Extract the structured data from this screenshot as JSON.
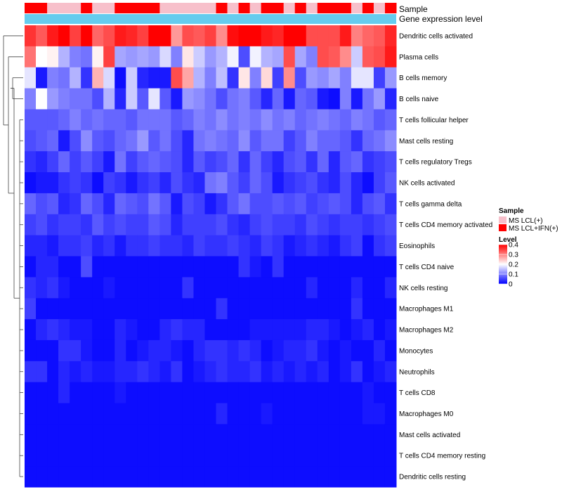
{
  "chart_data": {
    "type": "heatmap",
    "annotations": {
      "sample_label": "Sample",
      "expression_label": "Gene expression level",
      "sample_groups": [
        "MS LCL(+)",
        "MS LCL+IFN(+)"
      ],
      "sample_colors": [
        "#f7c0cb",
        "#ff0000"
      ],
      "sample_assignment": [
        1,
        1,
        0,
        0,
        0,
        1,
        0,
        0,
        1,
        1,
        1,
        1,
        0,
        0,
        0,
        0,
        0,
        1,
        0,
        1,
        0,
        1,
        1,
        0,
        1,
        0,
        1,
        1,
        1,
        0,
        1,
        0,
        1
      ],
      "expression_color": "#66ccee"
    },
    "legend": {
      "sample_title": "Sample",
      "level_title": "Level",
      "level_ticks": [
        "0.4",
        "0.3",
        "0.2",
        "0.1",
        "0"
      ],
      "level_range": [
        0,
        0.4
      ],
      "gradient": [
        "#0000ff",
        "#ffffff",
        "#ff0000"
      ]
    },
    "rows": [
      "Dendritic cells activated",
      "Plasma cells",
      "B cells memory",
      "B cells naive",
      "T cells follicular helper",
      "Mast cells resting",
      "T cells regulatory  Tregs",
      "NK cells activated",
      "T cells gamma delta",
      "T cells CD4 memory activated",
      "Eosinophils",
      "T cells CD4 naive",
      "NK cells resting",
      "Macrophages M1",
      "Macrophages M2",
      "Monocytes",
      "Neutrophils",
      "T cells CD8",
      "Macrophages M0",
      "Mast cells activated",
      "T cells CD4 memory resting",
      "Dendritic cells resting"
    ],
    "n_columns": 33,
    "values": [
      [
        0.36,
        0.33,
        0.38,
        0.4,
        0.35,
        0.4,
        0.32,
        0.34,
        0.38,
        0.37,
        0.35,
        0.4,
        0.4,
        0.28,
        0.34,
        0.33,
        0.35,
        0.29,
        0.39,
        0.4,
        0.4,
        0.38,
        0.37,
        0.4,
        0.4,
        0.34,
        0.34,
        0.34,
        0.38,
        0.3,
        0.32,
        0.33,
        0.37
      ],
      [
        0.31,
        0.2,
        0.21,
        0.14,
        0.1,
        0.09,
        0.21,
        0.35,
        0.13,
        0.12,
        0.13,
        0.12,
        0.17,
        0.1,
        0.22,
        0.16,
        0.12,
        0.14,
        0.19,
        0.06,
        0.19,
        0.14,
        0.13,
        0.34,
        0.13,
        0.1,
        0.34,
        0.33,
        0.29,
        0.16,
        0.33,
        0.34,
        0.38
      ],
      [
        0.18,
        0.02,
        0.1,
        0.09,
        0.14,
        0.04,
        0.26,
        0.17,
        0.01,
        0.16,
        0.03,
        0.02,
        0.02,
        0.34,
        0.27,
        0.14,
        0.1,
        0.15,
        0.04,
        0.22,
        0.1,
        0.23,
        0.05,
        0.29,
        0.06,
        0.12,
        0.11,
        0.13,
        0.1,
        0.18,
        0.18,
        0.05,
        0.12
      ],
      [
        0.1,
        0.2,
        0.12,
        0.1,
        0.09,
        0.09,
        0.06,
        0.14,
        0.03,
        0.16,
        0.07,
        0.18,
        0.07,
        0.02,
        0.12,
        0.11,
        0.09,
        0.06,
        0.09,
        0.1,
        0.07,
        0.03,
        0.08,
        0.02,
        0.08,
        0.07,
        0.02,
        0.01,
        0.1,
        0.02,
        0.09,
        0.12,
        0.03
      ],
      [
        0.07,
        0.07,
        0.07,
        0.08,
        0.1,
        0.08,
        0.09,
        0.08,
        0.08,
        0.07,
        0.09,
        0.09,
        0.09,
        0.07,
        0.08,
        0.1,
        0.09,
        0.11,
        0.09,
        0.1,
        0.09,
        0.11,
        0.09,
        0.1,
        0.08,
        0.09,
        0.1,
        0.09,
        0.08,
        0.1,
        0.09,
        0.07,
        0.08
      ],
      [
        0.06,
        0.07,
        0.08,
        0.02,
        0.06,
        0.11,
        0.07,
        0.06,
        0.08,
        0.09,
        0.12,
        0.07,
        0.09,
        0.06,
        0.03,
        0.09,
        0.1,
        0.09,
        0.08,
        0.11,
        0.07,
        0.09,
        0.09,
        0.05,
        0.07,
        0.1,
        0.08,
        0.08,
        0.07,
        0.04,
        0.08,
        0.09,
        0.11
      ],
      [
        0.04,
        0.03,
        0.05,
        0.08,
        0.05,
        0.07,
        0.05,
        0.02,
        0.09,
        0.05,
        0.07,
        0.08,
        0.07,
        0.06,
        0.03,
        0.07,
        0.05,
        0.06,
        0.08,
        0.04,
        0.08,
        0.05,
        0.03,
        0.06,
        0.07,
        0.04,
        0.08,
        0.03,
        0.07,
        0.08,
        0.04,
        0.05,
        0.06
      ],
      [
        0.01,
        0.02,
        0.02,
        0.04,
        0.05,
        0.04,
        0.01,
        0.05,
        0.04,
        0.02,
        0.04,
        0.05,
        0.03,
        0.06,
        0.04,
        0.03,
        0.09,
        0.1,
        0.07,
        0.05,
        0.08,
        0.06,
        0.02,
        0.04,
        0.05,
        0.06,
        0.04,
        0.03,
        0.06,
        0.03,
        0.01,
        0.05,
        0.07
      ],
      [
        0.08,
        0.06,
        0.07,
        0.03,
        0.04,
        0.08,
        0.06,
        0.03,
        0.08,
        0.07,
        0.06,
        0.09,
        0.07,
        0.02,
        0.06,
        0.05,
        0.02,
        0.04,
        0.07,
        0.09,
        0.06,
        0.06,
        0.07,
        0.06,
        0.07,
        0.05,
        0.06,
        0.07,
        0.06,
        0.03,
        0.06,
        0.07,
        0.04
      ],
      [
        0.05,
        0.06,
        0.04,
        0.05,
        0.05,
        0.04,
        0.07,
        0.05,
        0.06,
        0.05,
        0.05,
        0.07,
        0.06,
        0.03,
        0.05,
        0.05,
        0.05,
        0.06,
        0.04,
        0.03,
        0.05,
        0.06,
        0.05,
        0.05,
        0.04,
        0.06,
        0.05,
        0.04,
        0.05,
        0.05,
        0.04,
        0.05,
        0.06
      ],
      [
        0.03,
        0.03,
        0.02,
        0.04,
        0.04,
        0.05,
        0.03,
        0.04,
        0.02,
        0.04,
        0.04,
        0.05,
        0.04,
        0.04,
        0.03,
        0.05,
        0.04,
        0.04,
        0.05,
        0.04,
        0.03,
        0.05,
        0.04,
        0.02,
        0.03,
        0.04,
        0.03,
        0.02,
        0.04,
        0.05,
        0.01,
        0.04,
        0.05
      ],
      [
        0.01,
        0.03,
        0.03,
        0.01,
        0.01,
        0.06,
        0.01,
        0.01,
        0.01,
        0.01,
        0.01,
        0.01,
        0.01,
        0.01,
        0.01,
        0.01,
        0.01,
        0.01,
        0.01,
        0.04,
        0.02,
        0.01,
        0.04,
        0.01,
        0.01,
        0.01,
        0.01,
        0.01,
        0.01,
        0.01,
        0.01,
        0.01,
        0.01
      ],
      [
        0.04,
        0.03,
        0.04,
        0.02,
        0.01,
        0.01,
        0.01,
        0.02,
        0.01,
        0.01,
        0.01,
        0.01,
        0.01,
        0.01,
        0.04,
        0.01,
        0.01,
        0.01,
        0.01,
        0.01,
        0.01,
        0.01,
        0.01,
        0.01,
        0.01,
        0.03,
        0.01,
        0.01,
        0.01,
        0.03,
        0.01,
        0.01,
        0.03
      ],
      [
        0.05,
        0.01,
        0.01,
        0.01,
        0.01,
        0.01,
        0.01,
        0.01,
        0.01,
        0.01,
        0.01,
        0.01,
        0.01,
        0.01,
        0.01,
        0.01,
        0.01,
        0.04,
        0.01,
        0.01,
        0.01,
        0.01,
        0.01,
        0.01,
        0.01,
        0.01,
        0.01,
        0.01,
        0.01,
        0.04,
        0.01,
        0.01,
        0.01
      ],
      [
        0.01,
        0.03,
        0.04,
        0.03,
        0.02,
        0.02,
        0.01,
        0.01,
        0.03,
        0.02,
        0.01,
        0.01,
        0.03,
        0.04,
        0.03,
        0.03,
        0.01,
        0.01,
        0.01,
        0.01,
        0.02,
        0.02,
        0.02,
        0.02,
        0.02,
        0.03,
        0.03,
        0.02,
        0.01,
        0.02,
        0.03,
        0.01,
        0.02
      ],
      [
        0.01,
        0.01,
        0.01,
        0.04,
        0.04,
        0.02,
        0.01,
        0.01,
        0.03,
        0.01,
        0.02,
        0.03,
        0.03,
        0.02,
        0.01,
        0.03,
        0.04,
        0.04,
        0.03,
        0.04,
        0.03,
        0.01,
        0.02,
        0.03,
        0.03,
        0.04,
        0.02,
        0.01,
        0.02,
        0.01,
        0.01,
        0.03,
        0.01
      ],
      [
        0.04,
        0.04,
        0.01,
        0.03,
        0.02,
        0.03,
        0.02,
        0.02,
        0.03,
        0.03,
        0.04,
        0.03,
        0.02,
        0.04,
        0.01,
        0.02,
        0.03,
        0.04,
        0.03,
        0.03,
        0.04,
        0.02,
        0.03,
        0.02,
        0.03,
        0.02,
        0.03,
        0.01,
        0.02,
        0.04,
        0.01,
        0.02,
        0.03
      ],
      [
        0.01,
        0.01,
        0.01,
        0.03,
        0.01,
        0.01,
        0.01,
        0.01,
        0.02,
        0.01,
        0.01,
        0.01,
        0.01,
        0.01,
        0.01,
        0.01,
        0.01,
        0.01,
        0.01,
        0.01,
        0.01,
        0.01,
        0.01,
        0.01,
        0.01,
        0.01,
        0.01,
        0.01,
        0.01,
        0.01,
        0.02,
        0.01,
        0.01
      ],
      [
        0.01,
        0.01,
        0.01,
        0.01,
        0.01,
        0.01,
        0.01,
        0.01,
        0.01,
        0.01,
        0.01,
        0.01,
        0.01,
        0.01,
        0.01,
        0.01,
        0.01,
        0.03,
        0.01,
        0.01,
        0.01,
        0.02,
        0.01,
        0.01,
        0.01,
        0.01,
        0.01,
        0.01,
        0.01,
        0.01,
        0.02,
        0.02,
        0.01
      ],
      [
        0.01,
        0.01,
        0.01,
        0.01,
        0.01,
        0.01,
        0.01,
        0.01,
        0.01,
        0.01,
        0.01,
        0.01,
        0.01,
        0.01,
        0.01,
        0.01,
        0.01,
        0.01,
        0.01,
        0.01,
        0.01,
        0.01,
        0.01,
        0.01,
        0.01,
        0.01,
        0.01,
        0.01,
        0.01,
        0.01,
        0.01,
        0.01,
        0.01
      ],
      [
        0.01,
        0.01,
        0.01,
        0.01,
        0.01,
        0.01,
        0.01,
        0.01,
        0.01,
        0.01,
        0.01,
        0.01,
        0.01,
        0.01,
        0.01,
        0.01,
        0.01,
        0.01,
        0.01,
        0.01,
        0.01,
        0.01,
        0.01,
        0.01,
        0.01,
        0.01,
        0.01,
        0.01,
        0.01,
        0.01,
        0.01,
        0.01,
        0.01
      ],
      [
        0.01,
        0.01,
        0.01,
        0.01,
        0.01,
        0.01,
        0.01,
        0.01,
        0.01,
        0.01,
        0.01,
        0.01,
        0.01,
        0.01,
        0.01,
        0.01,
        0.01,
        0.01,
        0.01,
        0.01,
        0.01,
        0.01,
        0.01,
        0.01,
        0.01,
        0.01,
        0.01,
        0.01,
        0.01,
        0.01,
        0.01,
        0.01,
        0.01
      ]
    ]
  }
}
